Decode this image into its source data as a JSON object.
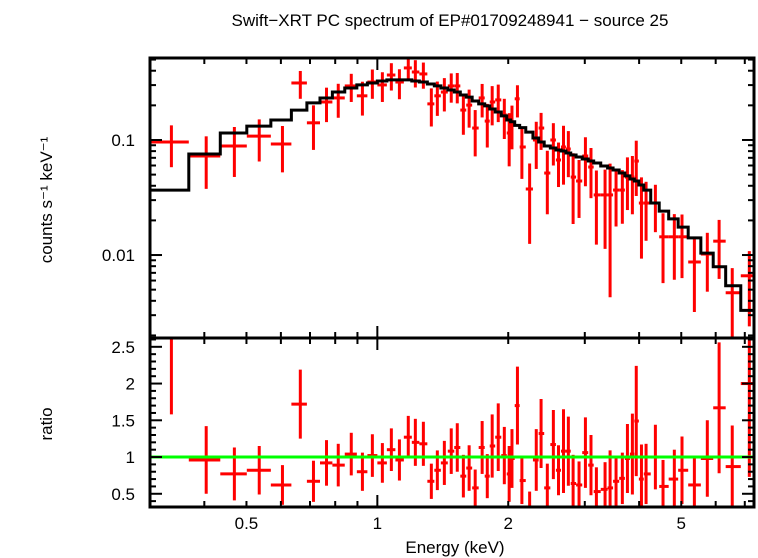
{
  "chart_data": {
    "type": "scatter",
    "title": "Swift−XRT PC spectrum of EP#01709248941 − source 25",
    "xlabel": "Energy (keV)",
    "x_scale": "log",
    "xlim": [
      0.3,
      7.35
    ],
    "x_tick_labels": [
      "0.5",
      "1",
      "2",
      "5"
    ],
    "x_tick_values": [
      0.5,
      1,
      2,
      5
    ],
    "panels": {
      "spectrum": {
        "ylabel": "counts s⁻¹ keV⁻¹",
        "y_scale": "log",
        "ylim": [
          0.0019,
          0.516
        ],
        "y_tick_labels": [
          "0.1",
          "0.01"
        ],
        "y_tick_values": [
          0.1,
          0.01
        ]
      },
      "ratio": {
        "ylabel": "ratio",
        "y_scale": "linear",
        "ylim": [
          0.32,
          2.62
        ],
        "y_tick_labels": [
          "2.5",
          "2",
          "1.5",
          "1",
          "0.5"
        ],
        "y_tick_values": [
          2.5,
          2,
          1.5,
          1,
          0.5
        ],
        "reference_line": 1
      }
    },
    "energy": [
      0.336,
      0.404,
      0.469,
      0.535,
      0.605,
      0.665,
      0.713,
      0.764,
      0.813,
      0.871,
      0.924,
      0.974,
      1.027,
      1.077,
      1.124,
      1.178,
      1.223,
      1.276,
      1.331,
      1.374,
      1.426,
      1.479,
      1.527,
      1.577,
      1.626,
      1.679,
      1.742,
      1.79,
      1.837,
      1.897,
      1.959,
      2.01,
      2.04,
      2.1,
      2.15,
      2.24,
      2.32,
      2.38,
      2.46,
      2.54,
      2.61,
      2.68,
      2.75,
      2.82,
      2.91,
      3.01,
      3.1,
      3.19,
      3.34,
      3.43,
      3.54,
      3.66,
      3.76,
      3.86,
      3.94,
      4.05,
      4.15,
      4.36,
      4.54,
      4.82,
      5.02,
      5.36,
      5.74,
      6.11,
      6.55,
      7.17
    ],
    "series": [
      {
        "kind": "data",
        "values": [
          0.096,
          0.0726,
          0.0887,
          0.108,
          0.0923,
          0.313,
          0.141,
          0.214,
          0.232,
          0.295,
          0.242,
          0.319,
          0.301,
          0.367,
          0.319,
          0.423,
          0.39,
          0.375,
          0.206,
          0.242,
          0.261,
          0.295,
          0.295,
          0.182,
          0.201,
          0.127,
          0.232,
          0.146,
          0.214,
          0.223,
          0.165,
          0.115,
          0.141,
          0.228,
          0.0869,
          0.0375,
          0.1,
          0.127,
          0.0516,
          0.1,
          0.067,
          0.0869,
          0.0835,
          0.0476,
          0.044,
          0.0726,
          0.0582,
          0.0333,
          0.0333,
          0.0333,
          0.0367,
          0.0367,
          0.0476,
          0.0476,
          0.0656,
          0.0283,
          0.0283,
          0.0283,
          0.0144,
          0.0144,
          0.0144,
          0.0087,
          0.0102,
          0.0132,
          0.0047,
          0.0066
        ],
        "errors": [
          0.038,
          0.035,
          0.041,
          0.043,
          0.04,
          0.085,
          0.059,
          0.071,
          0.076,
          0.081,
          0.079,
          0.091,
          0.087,
          0.098,
          0.093,
          0.097,
          0.104,
          0.096,
          0.075,
          0.08,
          0.084,
          0.084,
          0.087,
          0.071,
          0.073,
          0.055,
          0.075,
          0.06,
          0.08,
          0.08,
          0.063,
          0.056,
          0.058,
          0.071,
          0.041,
          0.025,
          0.044,
          0.045,
          0.029,
          0.04,
          0.028,
          0.046,
          0.036,
          0.029,
          0.023,
          0.033,
          0.027,
          0.021,
          0.022,
          0.029,
          0.019,
          0.018,
          0.023,
          0.025,
          0.033,
          0.019,
          0.015,
          0.0125,
          0.0087,
          0.0083,
          0.0081,
          0.0055,
          0.0054,
          0.007,
          0.003,
          0.0042
        ],
        "color": "#ff0000"
      },
      {
        "kind": "model",
        "values": [
          0.0367,
          0.0755,
          0.115,
          0.132,
          0.149,
          0.182,
          0.21,
          0.232,
          0.261,
          0.283,
          0.301,
          0.313,
          0.326,
          0.333,
          0.333,
          0.333,
          0.326,
          0.319,
          0.307,
          0.295,
          0.283,
          0.272,
          0.261,
          0.246,
          0.236,
          0.218,
          0.206,
          0.198,
          0.186,
          0.175,
          0.162,
          0.149,
          0.144,
          0.134,
          0.128,
          0.117,
          0.104,
          0.096,
          0.0887,
          0.0852,
          0.0818,
          0.0802,
          0.0771,
          0.0741,
          0.0712,
          0.0684,
          0.0656,
          0.0631,
          0.0594,
          0.0571,
          0.0548,
          0.0516,
          0.0487,
          0.0458,
          0.044,
          0.0406,
          0.0367,
          0.0283,
          0.0241,
          0.0206,
          0.0175,
          0.0141,
          0.0104,
          0.0079,
          0.0054,
          0.0033
        ],
        "color": "#000000"
      },
      {
        "kind": "ratio",
        "values": [
          2.62,
          0.96,
          0.77,
          0.82,
          0.62,
          1.72,
          0.67,
          0.92,
          0.89,
          1.04,
          0.8,
          1.02,
          0.92,
          1.1,
          0.96,
          1.27,
          1.2,
          1.18,
          0.67,
          0.82,
          0.92,
          1.08,
          1.13,
          0.74,
          0.85,
          0.58,
          1.13,
          0.74,
          1.15,
          1.27,
          1.02,
          0.77,
          0.98,
          1.7,
          0.68,
          0.32,
          0.96,
          1.32,
          0.58,
          1.17,
          0.82,
          1.08,
          1.08,
          0.64,
          0.62,
          1.06,
          0.89,
          0.53,
          0.56,
          0.58,
          0.67,
          0.71,
          0.98,
          1.04,
          1.49,
          0.7,
          0.77,
          1.0,
          0.6,
          0.7,
          0.82,
          0.62,
          0.98,
          1.67,
          0.87,
          2.0
        ],
        "errors": [
          1.04,
          0.46,
          0.36,
          0.33,
          0.27,
          0.47,
          0.28,
          0.31,
          0.29,
          0.29,
          0.26,
          0.29,
          0.27,
          0.29,
          0.28,
          0.29,
          0.32,
          0.3,
          0.24,
          0.27,
          0.3,
          0.31,
          0.33,
          0.29,
          0.31,
          0.25,
          0.36,
          0.3,
          0.43,
          0.46,
          0.39,
          0.38,
          0.4,
          0.53,
          0.32,
          0.21,
          0.42,
          0.47,
          0.33,
          0.47,
          0.34,
          0.57,
          0.47,
          0.39,
          0.32,
          0.48,
          0.41,
          0.33,
          0.37,
          0.51,
          0.35,
          0.35,
          0.47,
          0.55,
          0.75,
          0.47,
          0.41,
          0.44,
          0.36,
          0.4,
          0.46,
          0.39,
          0.52,
          0.89,
          0.56,
          1.27
        ],
        "color": "#ff0000"
      }
    ],
    "reference_line_color": "#00ff00",
    "grid": false,
    "legend": "none"
  }
}
